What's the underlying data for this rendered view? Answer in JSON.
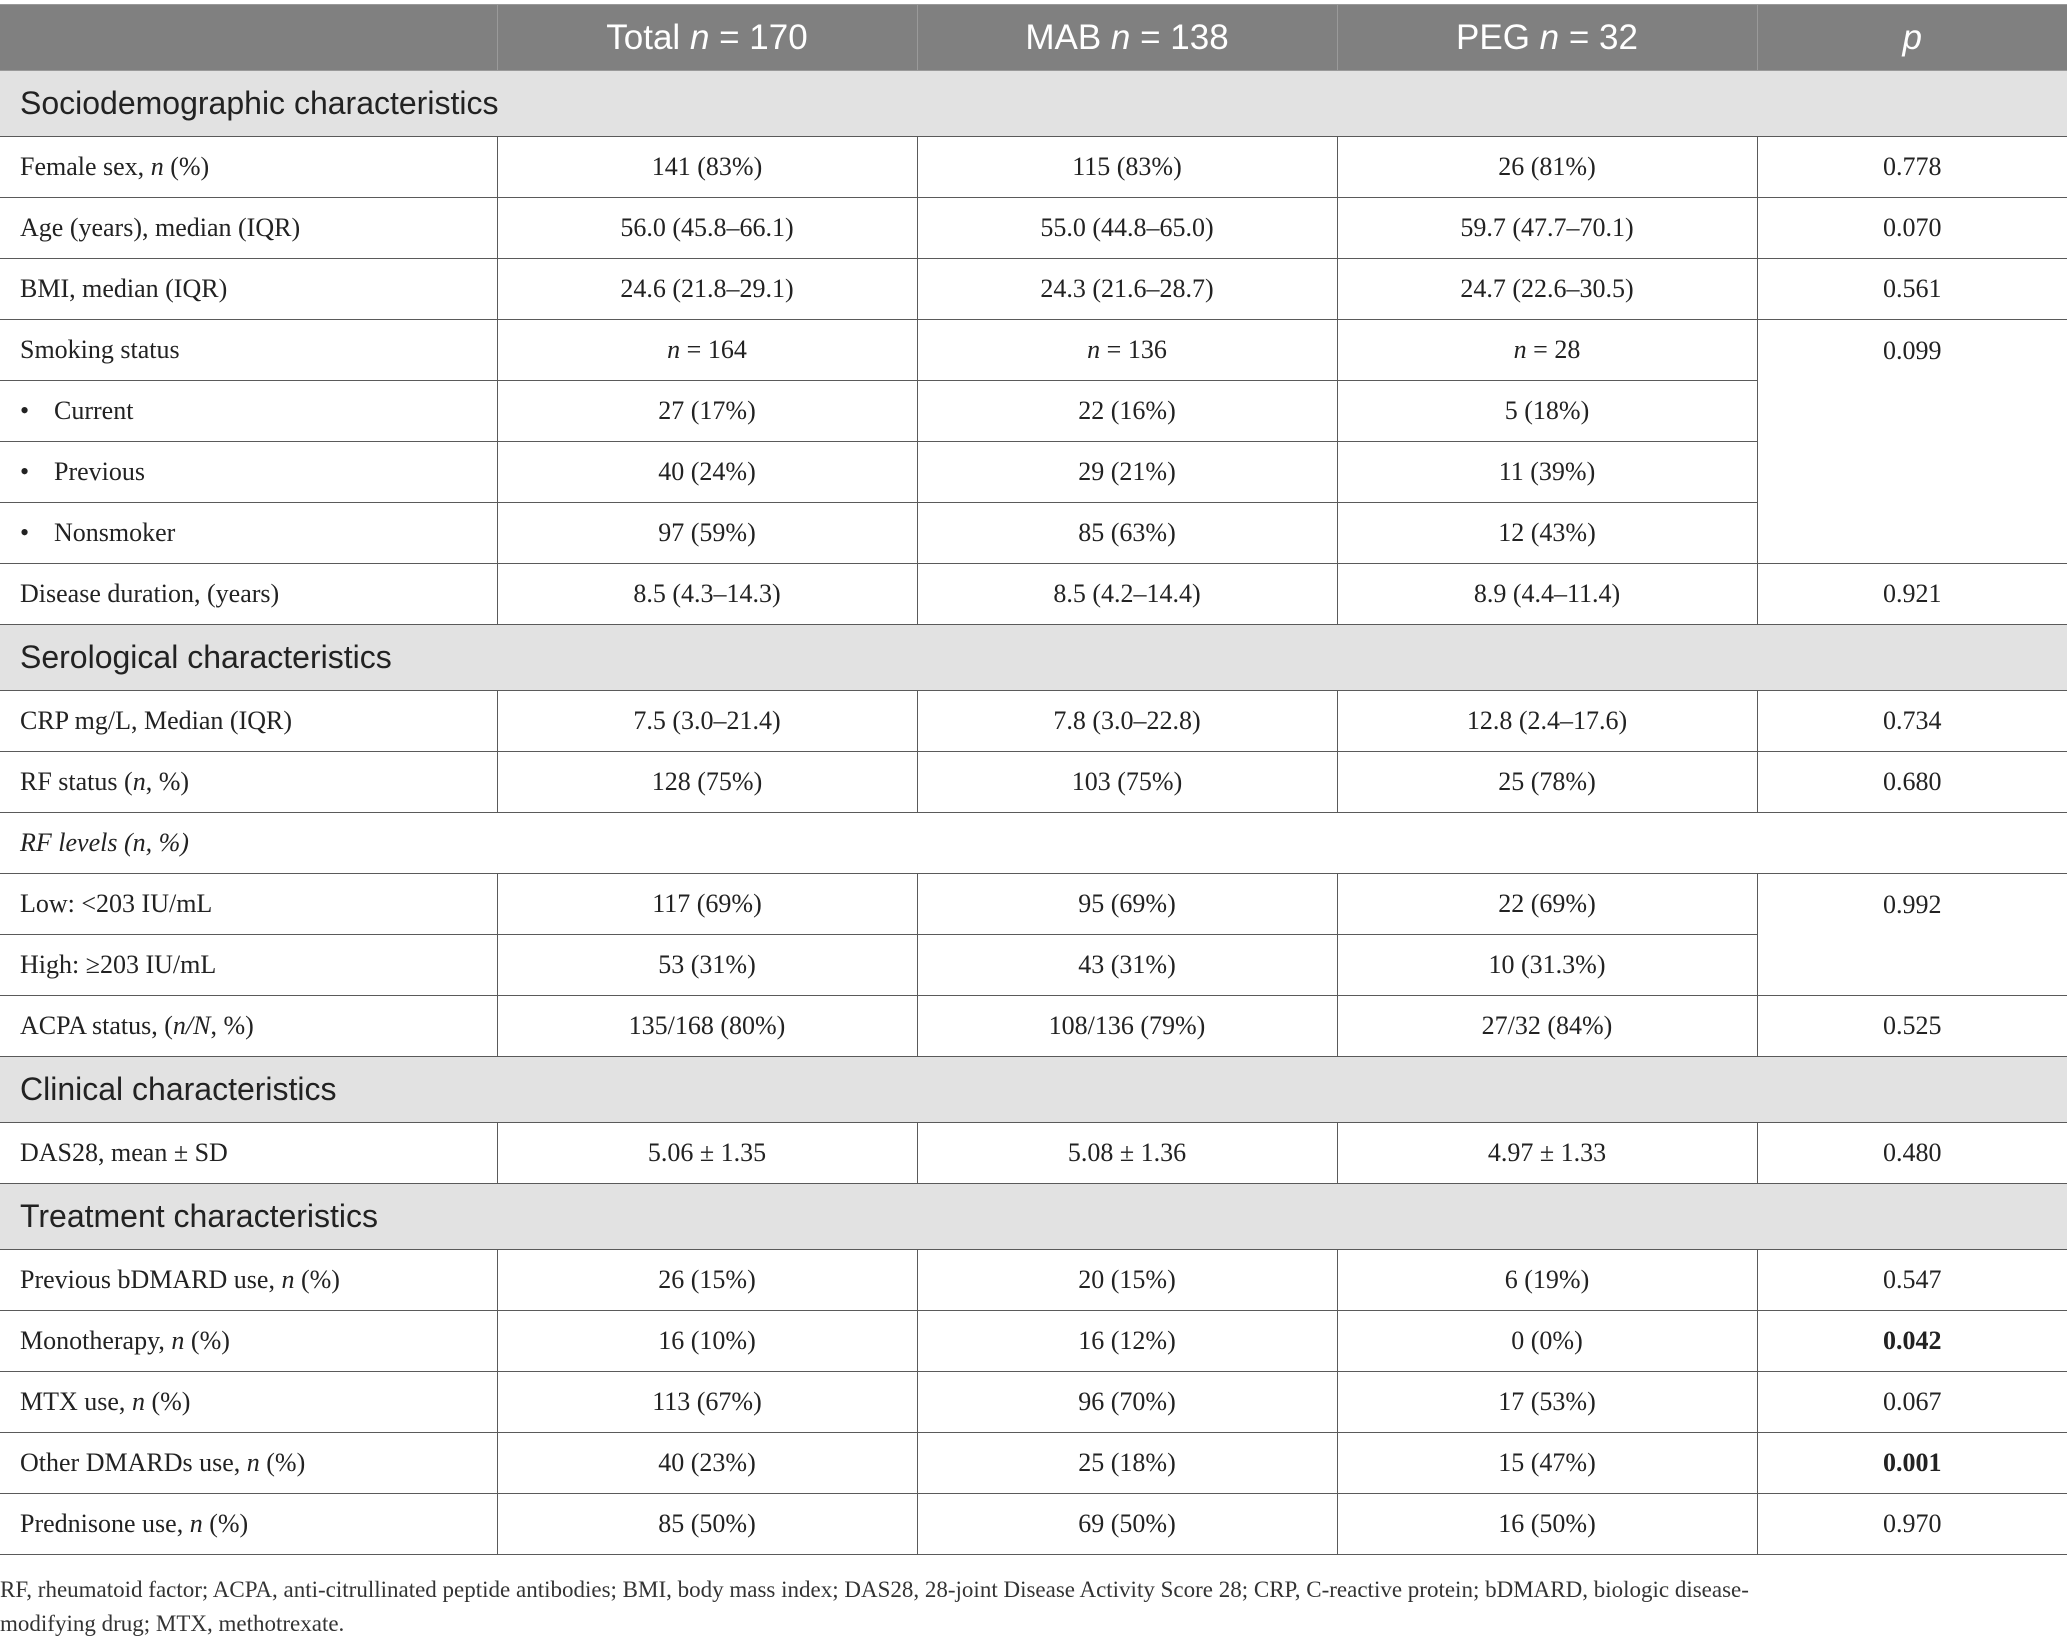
{
  "header": {
    "total": {
      "label": "Total ",
      "n": "n",
      "value": " = 170"
    },
    "mab": {
      "label": "MAB ",
      "n": "n",
      "value": " = 138"
    },
    "peg": {
      "label": "PEG ",
      "n": "n",
      "value": " = 32"
    },
    "p": "p"
  },
  "sections": {
    "socio": "Sociodemographic characteristics",
    "sero": "Serological characteristics",
    "clinical": "Clinical characteristics",
    "treatment": "Treatment characteristics"
  },
  "rows": {
    "female": {
      "label_a": "Female sex, ",
      "label_i": "n",
      "label_b": " (%)",
      "total": "141 (83%)",
      "mab": "115 (83%)",
      "peg": "26 (81%)",
      "p": "0.778"
    },
    "age": {
      "label": "Age (years), median (IQR)",
      "total": "56.0 (45.8–66.1)",
      "mab": "55.0 (44.8–65.0)",
      "peg": "59.7 (47.7–70.1)",
      "p": "0.070"
    },
    "bmi": {
      "label": "BMI, median (IQR)",
      "total": "24.6 (21.8–29.1)",
      "mab": "24.3 (21.6–28.7)",
      "peg": "24.7 (22.6–30.5)",
      "p": "0.561"
    },
    "smoking": {
      "label": "Smoking status",
      "n": "n",
      "total": " = 164",
      "mab": " = 136",
      "peg": " = 28",
      "p": "0.099"
    },
    "current": {
      "bullet": "•",
      "label": "Current",
      "total": "27 (17%)",
      "mab": "22 (16%)",
      "peg": "5 (18%)"
    },
    "previous": {
      "bullet": "•",
      "label": "Previous",
      "total": "40 (24%)",
      "mab": "29 (21%)",
      "peg": "11 (39%)"
    },
    "nonsmoker": {
      "bullet": "•",
      "label": "Nonsmoker",
      "total": "97 (59%)",
      "mab": "85 (63%)",
      "peg": "12 (43%)"
    },
    "duration": {
      "label": "Disease duration, (years)",
      "total": "8.5 (4.3–14.3)",
      "mab": "8.5 (4.2–14.4)",
      "peg": "8.9 (4.4–11.4)",
      "p": "0.921"
    },
    "crp": {
      "label": "CRP mg/L, Median (IQR)",
      "total": "7.5 (3.0–21.4)",
      "mab": "7.8 (3.0–22.8)",
      "peg": "12.8 (2.4–17.6)",
      "p": "0.734"
    },
    "rf_status": {
      "label_a": "RF status (",
      "label_i": "n",
      "label_b": ", %)",
      "total": "128 (75%)",
      "mab": "103 (75%)",
      "peg": "25 (78%)",
      "p": "0.680"
    },
    "rf_levels": {
      "label": "RF levels (n, %)"
    },
    "rf_low": {
      "label": "Low: <203 IU/mL",
      "total": "117 (69%)",
      "mab": "95 (69%)",
      "peg": "22 (69%)",
      "p": "0.992"
    },
    "rf_high": {
      "label": "High: ≥203 IU/mL",
      "total": "53 (31%)",
      "mab": "43 (31%)",
      "peg": "10 (31.3%)"
    },
    "acpa": {
      "label_a": "ACPA status, (",
      "label_i": "n/N",
      "label_b": ", %)",
      "total": "135/168 (80%)",
      "mab": "108/136 (79%)",
      "peg": "27/32 (84%)",
      "p": "0.525"
    },
    "das28": {
      "label": "DAS28, mean ± SD",
      "total": "5.06 ± 1.35",
      "mab": "5.08 ± 1.36",
      "peg": "4.97 ± 1.33",
      "p": "0.480"
    },
    "bdmard": {
      "label_a": "Previous bDMARD use, ",
      "label_i": "n",
      "label_b": " (%)",
      "total": "26 (15%)",
      "mab": "20 (15%)",
      "peg": "6 (19%)",
      "p": "0.547"
    },
    "mono": {
      "label_a": "Monotherapy, ",
      "label_i": "n",
      "label_b": " (%)",
      "total": "16 (10%)",
      "mab": "16 (12%)",
      "peg": "0 (0%)",
      "p": "0.042"
    },
    "mtx": {
      "label_a": "MTX use, ",
      "label_i": "n",
      "label_b": " (%)",
      "total": "113 (67%)",
      "mab": "96 (70%)",
      "peg": "17 (53%)",
      "p": "0.067"
    },
    "other": {
      "label_a": "Other DMARDs use, ",
      "label_i": "n",
      "label_b": " (%)",
      "total": "40 (23%)",
      "mab": "25 (18%)",
      "peg": "15 (47%)",
      "p": "0.001"
    },
    "pred": {
      "label_a": "Prednisone use, ",
      "label_i": "n",
      "label_b": " (%)",
      "total": "85 (50%)",
      "mab": "69 (50%)",
      "peg": "16 (50%)",
      "p": "0.970"
    }
  },
  "footnote": {
    "line1": "RF, rheumatoid factor; ACPA, anti-citrullinated peptide antibodies; BMI, body mass index; DAS28, 28-joint Disease Activity Score 28; CRP, C-reactive protein; bDMARD, biologic disease-",
    "line2": "modifying drug; MTX, methotrexate."
  }
}
